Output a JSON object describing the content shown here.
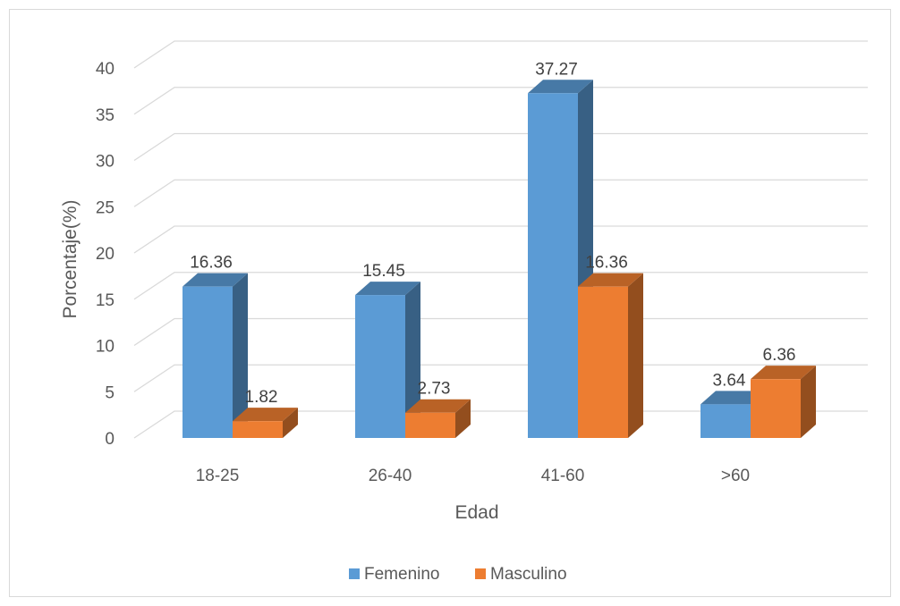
{
  "chart_data": {
    "type": "bar",
    "categories": [
      "18-25",
      "26-40",
      "41-60",
      ">60"
    ],
    "series": [
      {
        "name": "Femenino",
        "values": [
          16.36,
          15.45,
          37.27,
          3.64
        ],
        "labels": [
          "16.36",
          "15.45",
          "37.27",
          "3.64"
        ],
        "color": "#5B9BD5"
      },
      {
        "name": "Masculino",
        "values": [
          1.82,
          2.73,
          16.36,
          6.36
        ],
        "labels": [
          "1.82",
          "2.73",
          "16.36",
          "6.36"
        ],
        "color": "#ED7D31"
      }
    ],
    "yticks": [
      "0",
      "5",
      "10",
      "15",
      "20",
      "25",
      "30",
      "35",
      "40"
    ],
    "ylim": [
      0,
      40
    ],
    "xlabel": "Edad",
    "ylabel": "Porcentaje(%)",
    "grid": true,
    "legend": "bottom",
    "style": "3d-clustered-column"
  }
}
